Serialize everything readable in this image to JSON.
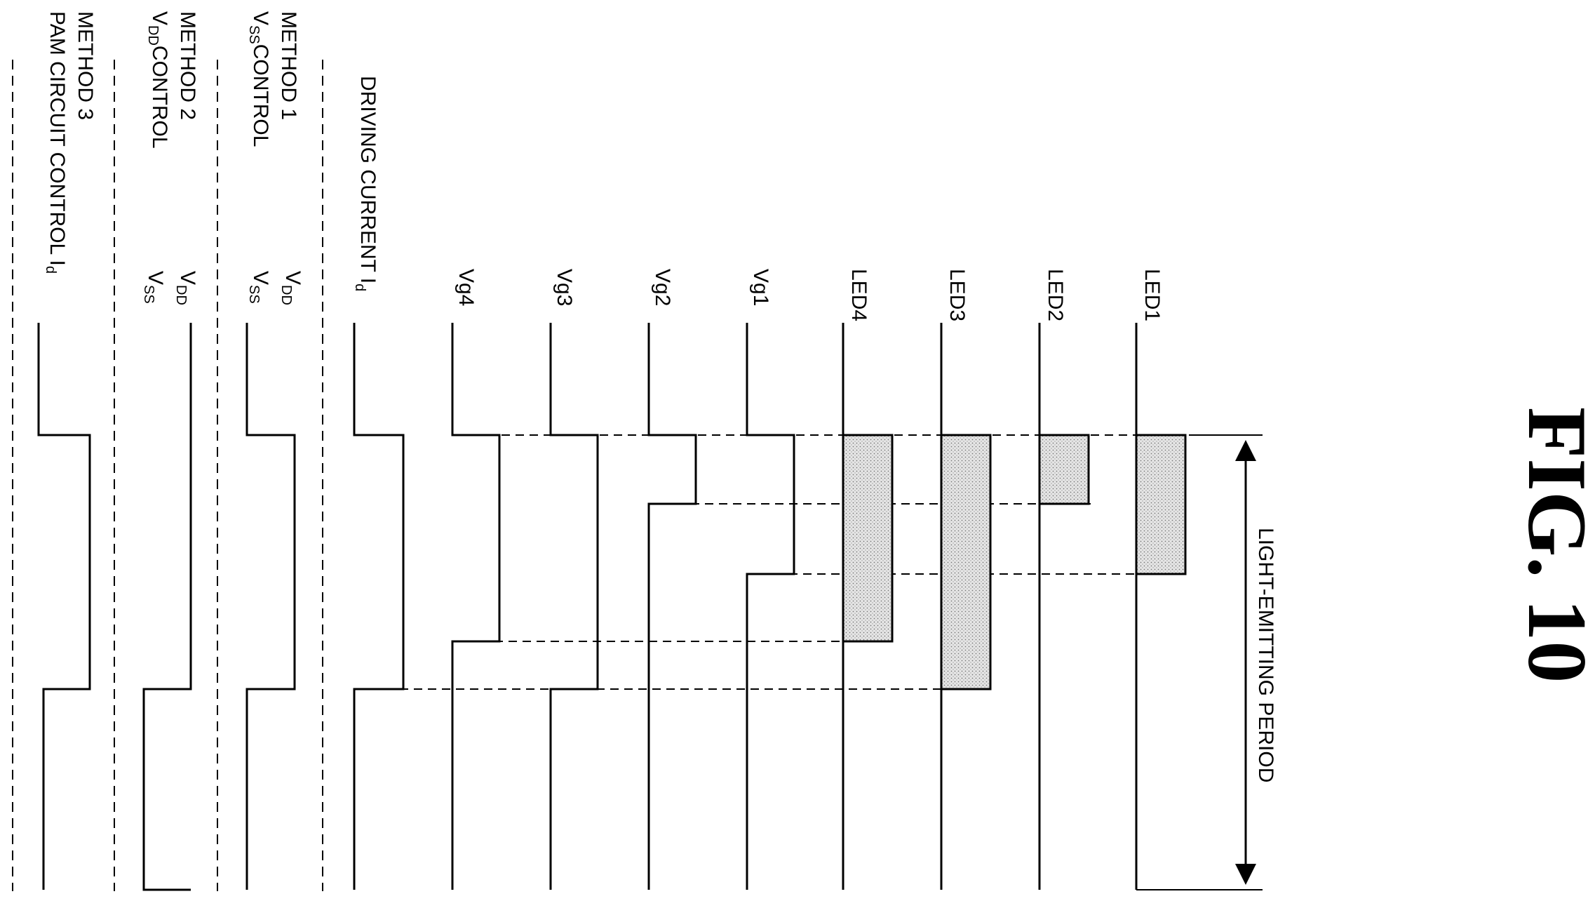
{
  "figure": {
    "title": "FIG. 10"
  },
  "period": {
    "label": "LIGHT-EMITTING PERIOD"
  },
  "leds": [
    {
      "label": "LED1"
    },
    {
      "label": "LED2"
    },
    {
      "label": "LED3"
    },
    {
      "label": "LED4"
    }
  ],
  "gates": [
    {
      "label": "Vg1"
    },
    {
      "label": "Vg2"
    },
    {
      "label": "Vg3"
    },
    {
      "label": "Vg4"
    }
  ],
  "driving_current": {
    "label": "DRIVING CURRENT I",
    "sub": "d"
  },
  "methods": [
    {
      "name": "METHOD 1",
      "control": {
        "main": "V",
        "sub": "SS",
        "tail": "CONTROL"
      },
      "signals": [
        {
          "main": "V",
          "sub": "DD"
        },
        {
          "main": "V",
          "sub": "SS"
        }
      ]
    },
    {
      "name": "METHOD 2",
      "control": {
        "main": "V",
        "sub": "DD",
        "tail": "CONTROL"
      },
      "signals": [
        {
          "main": "V",
          "sub": "DD"
        },
        {
          "main": "V",
          "sub": "SS"
        }
      ]
    },
    {
      "name": "METHOD 3",
      "control": {
        "main": "PAM CIRCUIT CONTROL I",
        "sub": "d",
        "tail": ""
      },
      "signals": []
    }
  ]
}
